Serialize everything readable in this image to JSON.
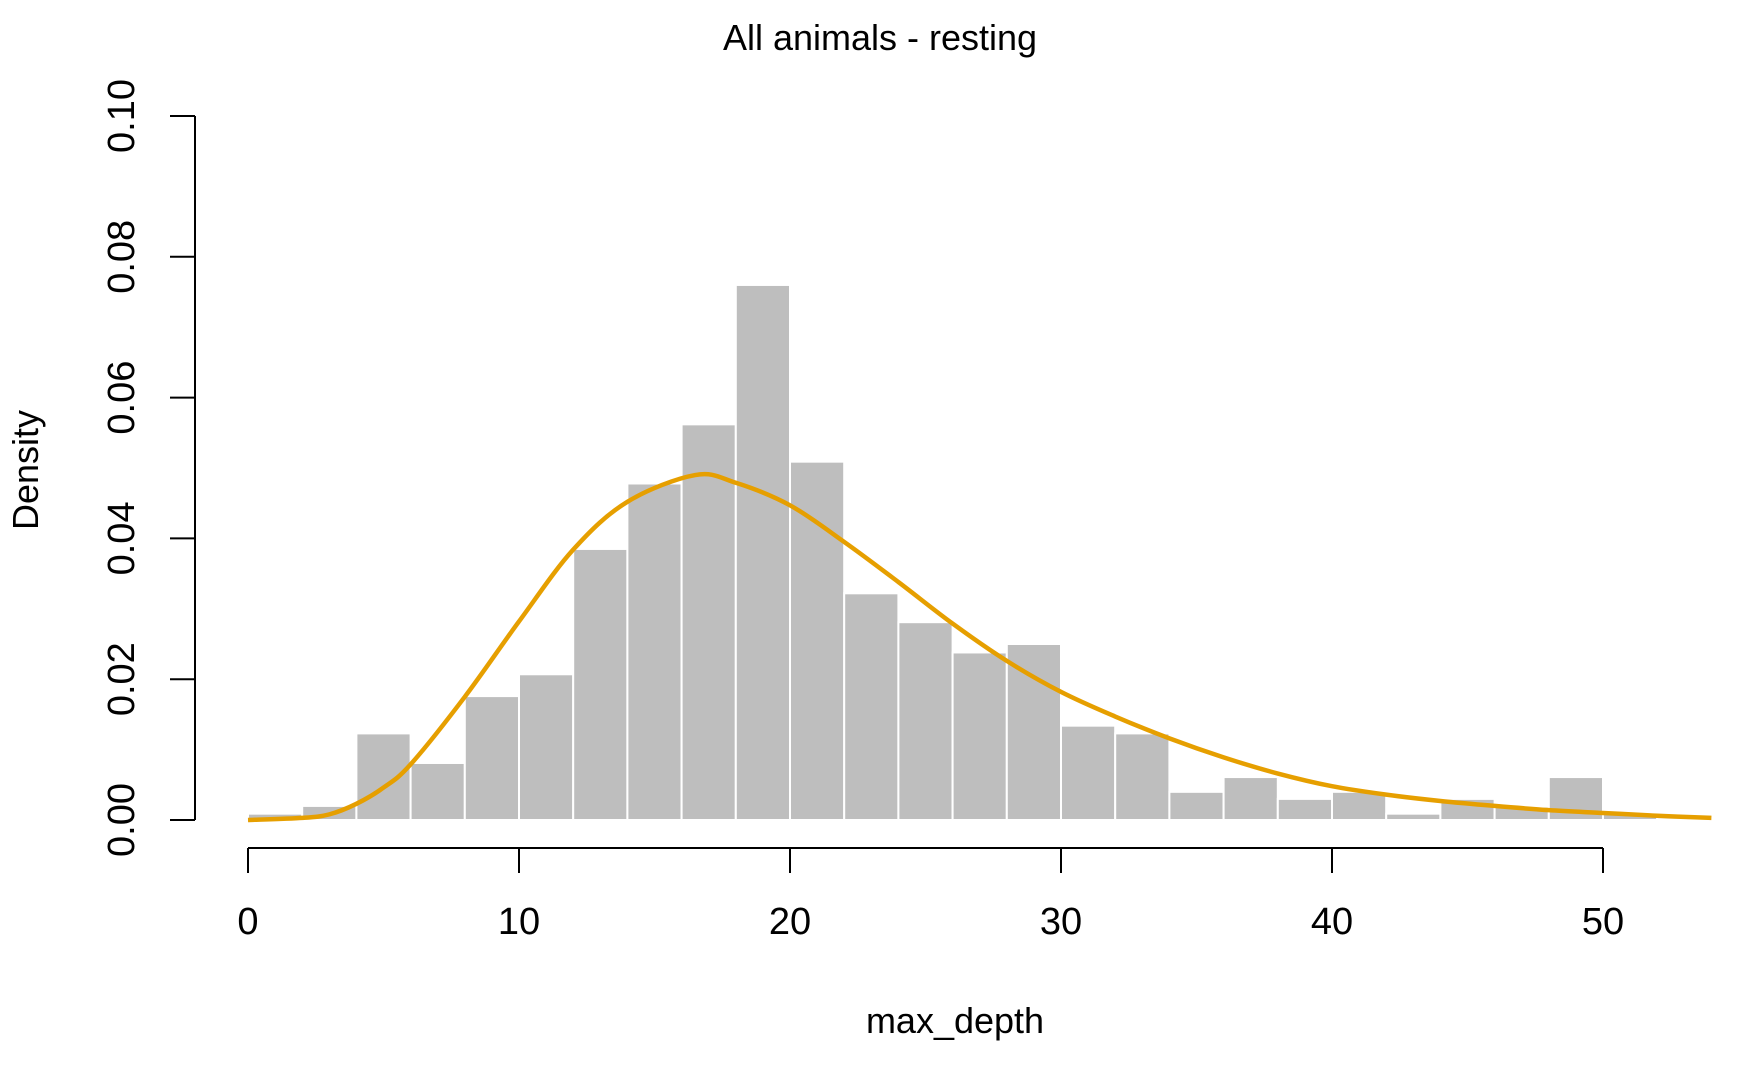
{
  "chart_data": {
    "type": "bar",
    "title": "All animals - resting",
    "xlabel": "max_depth",
    "ylabel": "Density",
    "xlim": [
      0,
      54
    ],
    "ylim": [
      0,
      0.1
    ],
    "x_ticks": [
      "0",
      "10",
      "20",
      "30",
      "40",
      "50"
    ],
    "y_ticks": [
      "0.00",
      "0.02",
      "0.04",
      "0.06",
      "0.08",
      "0.10"
    ],
    "grid": false,
    "legend": "none",
    "histogram": {
      "bin_edges": [
        0,
        2,
        4,
        6,
        8,
        10,
        12,
        14,
        16,
        18,
        20,
        22,
        24,
        26,
        28,
        30,
        32,
        34,
        36,
        38,
        40,
        42,
        44,
        46,
        48,
        50,
        52,
        54
      ],
      "density": [
        0.0009,
        0.002,
        0.0123,
        0.0081,
        0.0176,
        0.0207,
        0.0385,
        0.0478,
        0.0562,
        0.076,
        0.0509,
        0.0322,
        0.0281,
        0.0238,
        0.025,
        0.0134,
        0.0123,
        0.004,
        0.0061,
        0.003,
        0.004,
        0.0009,
        0.003,
        0.0019,
        0.0061,
        0.0009,
        0.0003
      ],
      "color": "#bebebe"
    },
    "density_curve": {
      "x": [
        0,
        2,
        3,
        4,
        5,
        6,
        8,
        10,
        12,
        14,
        16.5,
        18,
        20,
        22,
        24,
        26,
        28,
        30,
        32,
        34,
        36,
        38,
        40,
        42,
        44,
        46,
        48,
        50,
        52,
        54
      ],
      "y": [
        0.0,
        0.0003,
        0.0008,
        0.0023,
        0.0046,
        0.0079,
        0.0175,
        0.0282,
        0.0384,
        0.0452,
        0.049,
        0.0479,
        0.0447,
        0.0395,
        0.0338,
        0.0279,
        0.0226,
        0.0182,
        0.0147,
        0.0116,
        0.0089,
        0.0066,
        0.0048,
        0.0036,
        0.0027,
        0.002,
        0.0014,
        0.001,
        0.0006,
        0.0003
      ],
      "color": "#e69f00"
    }
  }
}
